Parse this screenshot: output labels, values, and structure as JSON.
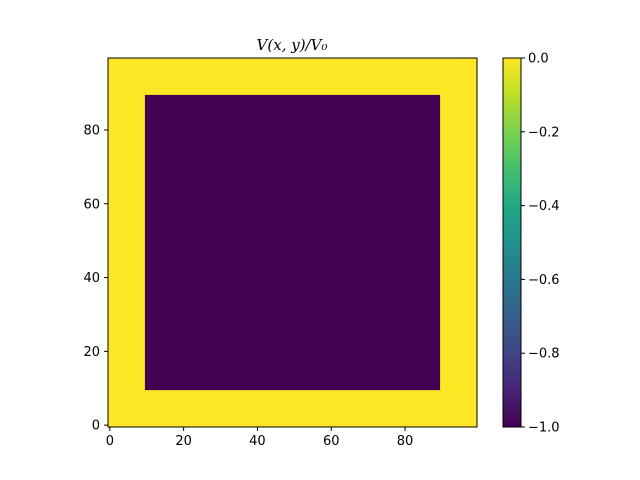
{
  "chart_data": {
    "type": "heatmap",
    "title": "V(x, y)/V₀",
    "xlabel": "",
    "ylabel": "",
    "xlim": [
      -0.5,
      99.5
    ],
    "ylim": [
      -0.5,
      99.5
    ],
    "x_ticks": [
      0,
      20,
      40,
      60,
      80
    ],
    "y_ticks": [
      0,
      20,
      40,
      60,
      80
    ],
    "colormap": "viridis",
    "vmin": -1.0,
    "vmax": 0.0,
    "colorbar_ticks": [
      0.0,
      -0.2,
      -0.4,
      -0.6,
      -0.8,
      -1.0
    ],
    "colorbar_tick_labels": [
      "0.0",
      "−0.2",
      "−0.4",
      "−0.6",
      "−0.8",
      "−1.0"
    ],
    "grid_size": [
      100,
      100
    ],
    "background_value": 0.0,
    "regions": [
      {
        "name": "inner-square",
        "x_range": [
          10,
          89
        ],
        "y_range": [
          10,
          89
        ],
        "value": -1.0
      }
    ],
    "grid": false
  },
  "colors": {
    "vmax_color": "#fde725",
    "vmin_color": "#440154"
  }
}
